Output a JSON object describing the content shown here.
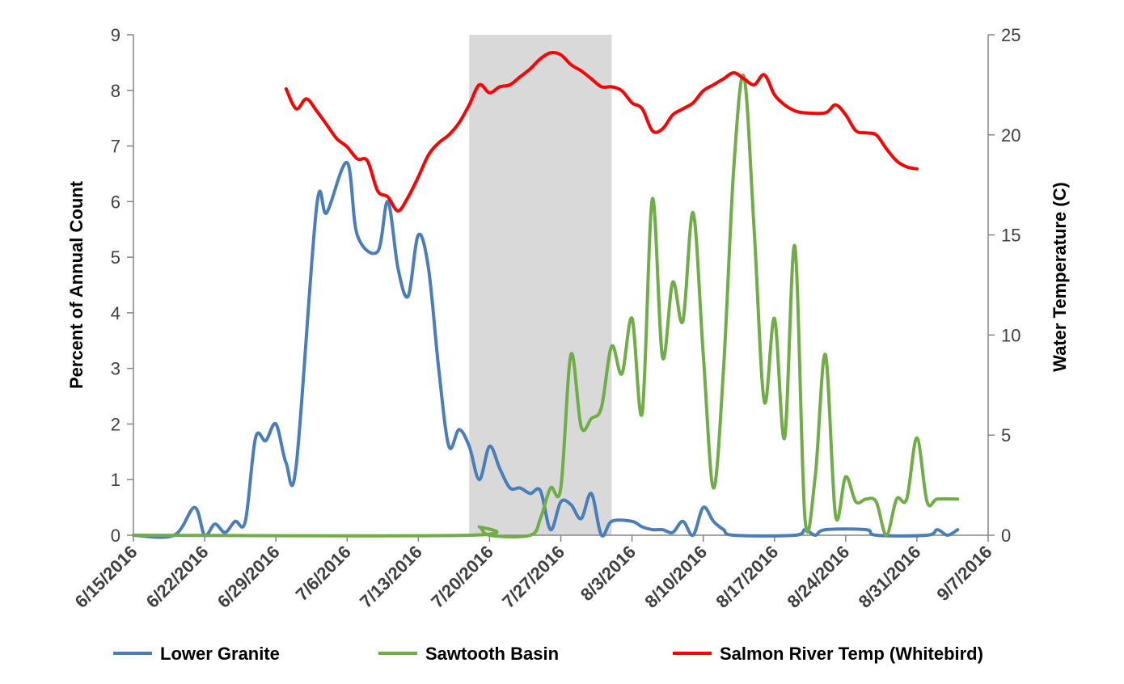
{
  "chart_data": {
    "type": "line",
    "x_axis": {
      "type": "date",
      "min": "2016-06-15",
      "max": "2016-09-07",
      "tick_labels": [
        "6/15/2016",
        "6/22/2016",
        "6/29/2016",
        "7/6/2016",
        "7/13/2016",
        "7/20/2016",
        "7/27/2016",
        "8/3/2016",
        "8/10/2016",
        "8/17/2016",
        "8/24/2016",
        "8/31/2016",
        "9/7/2016"
      ],
      "tick_dates": [
        "2016-06-15",
        "2016-06-22",
        "2016-06-29",
        "2016-07-06",
        "2016-07-13",
        "2016-07-20",
        "2016-07-27",
        "2016-08-03",
        "2016-08-10",
        "2016-08-17",
        "2016-08-24",
        "2016-08-31",
        "2016-09-07"
      ]
    },
    "y_axis_left": {
      "label": "Percent of  Annual Count",
      "min": 0,
      "max": 9,
      "ticks": [
        0,
        1,
        2,
        3,
        4,
        5,
        6,
        7,
        8,
        9
      ]
    },
    "y_axis_right": {
      "label": "Water Temperature (C)",
      "min": 0,
      "max": 25,
      "ticks": [
        0,
        5,
        10,
        15,
        20,
        25
      ]
    },
    "shaded_region": {
      "start": "2016-07-18",
      "end": "2016-08-01",
      "color": "#d9d9d9"
    },
    "grid": false,
    "legend_position": "bottom",
    "series": [
      {
        "name": "Lower Granite",
        "color": "#4a7ebb",
        "axis": "left",
        "points": [
          [
            "2016-06-15",
            0
          ],
          [
            "2016-06-19",
            0
          ],
          [
            "2016-06-21",
            0.5
          ],
          [
            "2016-06-22",
            0
          ],
          [
            "2016-06-23",
            0.2
          ],
          [
            "2016-06-24",
            0.05
          ],
          [
            "2016-06-25",
            0.25
          ],
          [
            "2016-06-26",
            0.25
          ],
          [
            "2016-06-27",
            1.75
          ],
          [
            "2016-06-28",
            1.7
          ],
          [
            "2016-06-29",
            2.0
          ],
          [
            "2016-06-30",
            1.3
          ],
          [
            "2016-07-01",
            1.25
          ],
          [
            "2016-07-03",
            5.9
          ],
          [
            "2016-07-04",
            5.8
          ],
          [
            "2016-07-06",
            6.7
          ],
          [
            "2016-07-07",
            5.4
          ],
          [
            "2016-07-09",
            5.1
          ],
          [
            "2016-07-10",
            6.0
          ],
          [
            "2016-07-11",
            4.8
          ],
          [
            "2016-07-12",
            4.3
          ],
          [
            "2016-07-13",
            5.4
          ],
          [
            "2016-07-14",
            4.8
          ],
          [
            "2016-07-15",
            3.0
          ],
          [
            "2016-07-16",
            1.6
          ],
          [
            "2016-07-17",
            1.9
          ],
          [
            "2016-07-18",
            1.6
          ],
          [
            "2016-07-19",
            1.0
          ],
          [
            "2016-07-20",
            1.6
          ],
          [
            "2016-07-21",
            1.2
          ],
          [
            "2016-07-22",
            0.85
          ],
          [
            "2016-07-23",
            0.85
          ],
          [
            "2016-07-24",
            0.75
          ],
          [
            "2016-07-25",
            0.8
          ],
          [
            "2016-07-26",
            0.1
          ],
          [
            "2016-07-27",
            0.6
          ],
          [
            "2016-07-28",
            0.55
          ],
          [
            "2016-07-29",
            0.3
          ],
          [
            "2016-07-30",
            0.75
          ],
          [
            "2016-07-31",
            0
          ],
          [
            "2016-08-01",
            0.25
          ],
          [
            "2016-08-03",
            0.25
          ],
          [
            "2016-08-04",
            0.15
          ],
          [
            "2016-08-05",
            0.1
          ],
          [
            "2016-08-06",
            0.1
          ],
          [
            "2016-08-07",
            0.05
          ],
          [
            "2016-08-08",
            0.25
          ],
          [
            "2016-08-09",
            0
          ],
          [
            "2016-08-10",
            0.5
          ],
          [
            "2016-08-11",
            0.25
          ],
          [
            "2016-08-12",
            0.1
          ],
          [
            "2016-08-13",
            0
          ],
          [
            "2016-08-19",
            0
          ],
          [
            "2016-08-20",
            0.1
          ],
          [
            "2016-08-21",
            0
          ],
          [
            "2016-08-22",
            0.1
          ],
          [
            "2016-08-26",
            0.1
          ],
          [
            "2016-08-27",
            0
          ],
          [
            "2016-09-01",
            0
          ],
          [
            "2016-09-02",
            0.1
          ],
          [
            "2016-09-03",
            0
          ],
          [
            "2016-09-04",
            0.1
          ]
        ]
      },
      {
        "name": "Sawtooth Basin",
        "color": "#70ad47",
        "axis": "left",
        "points": [
          [
            "2016-06-15",
            0
          ],
          [
            "2016-07-18",
            0
          ],
          [
            "2016-07-19",
            0.15
          ],
          [
            "2016-07-20",
            0
          ],
          [
            "2016-07-24",
            0
          ],
          [
            "2016-07-25",
            0.3
          ],
          [
            "2016-07-26",
            0.85
          ],
          [
            "2016-07-27",
            0.85
          ],
          [
            "2016-07-28",
            3.25
          ],
          [
            "2016-07-29",
            1.95
          ],
          [
            "2016-07-30",
            2.1
          ],
          [
            "2016-07-31",
            2.3
          ],
          [
            "2016-08-01",
            3.4
          ],
          [
            "2016-08-02",
            2.9
          ],
          [
            "2016-08-03",
            3.9
          ],
          [
            "2016-08-04",
            2.2
          ],
          [
            "2016-08-05",
            6.05
          ],
          [
            "2016-08-06",
            3.2
          ],
          [
            "2016-08-07",
            4.55
          ],
          [
            "2016-08-08",
            3.85
          ],
          [
            "2016-08-09",
            5.8
          ],
          [
            "2016-08-10",
            3.25
          ],
          [
            "2016-08-11",
            0.85
          ],
          [
            "2016-08-12",
            3.0
          ],
          [
            "2016-08-13",
            6.6
          ],
          [
            "2016-08-14",
            8.25
          ],
          [
            "2016-08-15",
            5.5
          ],
          [
            "2016-08-16",
            2.4
          ],
          [
            "2016-08-17",
            3.9
          ],
          [
            "2016-08-18",
            1.75
          ],
          [
            "2016-08-19",
            5.2
          ],
          [
            "2016-08-20",
            0.3
          ],
          [
            "2016-08-21",
            1.05
          ],
          [
            "2016-08-22",
            3.25
          ],
          [
            "2016-08-23",
            0.35
          ],
          [
            "2016-08-24",
            1.05
          ],
          [
            "2016-08-25",
            0.6
          ],
          [
            "2016-08-26",
            0.65
          ],
          [
            "2016-08-27",
            0.6
          ],
          [
            "2016-08-28",
            0
          ],
          [
            "2016-08-29",
            0.65
          ],
          [
            "2016-08-30",
            0.65
          ],
          [
            "2016-08-31",
            1.75
          ],
          [
            "2016-09-01",
            0.6
          ],
          [
            "2016-09-02",
            0.65
          ],
          [
            "2016-09-04",
            0.65
          ]
        ]
      },
      {
        "name": "Salmon River Temp (Whitebird)",
        "color": "#ff0000",
        "axis": "right",
        "points": [
          [
            "2016-06-30",
            22.3
          ],
          [
            "2016-07-01",
            21.3
          ],
          [
            "2016-07-02",
            21.8
          ],
          [
            "2016-07-03",
            21.2
          ],
          [
            "2016-07-04",
            20.5
          ],
          [
            "2016-07-05",
            19.8
          ],
          [
            "2016-07-06",
            19.4
          ],
          [
            "2016-07-07",
            18.8
          ],
          [
            "2016-07-08",
            18.7
          ],
          [
            "2016-07-09",
            17.2
          ],
          [
            "2016-07-10",
            16.9
          ],
          [
            "2016-07-11",
            16.2
          ],
          [
            "2016-07-12",
            16.9
          ],
          [
            "2016-07-13",
            17.9
          ],
          [
            "2016-07-14",
            19.0
          ],
          [
            "2016-07-15",
            19.6
          ],
          [
            "2016-07-16",
            20.0
          ],
          [
            "2016-07-17",
            20.6
          ],
          [
            "2016-07-18",
            21.5
          ],
          [
            "2016-07-19",
            22.5
          ],
          [
            "2016-07-20",
            22.1
          ],
          [
            "2016-07-21",
            22.4
          ],
          [
            "2016-07-22",
            22.5
          ],
          [
            "2016-07-23",
            22.9
          ],
          [
            "2016-07-24",
            23.3
          ],
          [
            "2016-07-25",
            23.8
          ],
          [
            "2016-07-26",
            24.1
          ],
          [
            "2016-07-27",
            24.0
          ],
          [
            "2016-07-28",
            23.5
          ],
          [
            "2016-07-29",
            23.2
          ],
          [
            "2016-07-30",
            22.8
          ],
          [
            "2016-07-31",
            22.4
          ],
          [
            "2016-08-01",
            22.4
          ],
          [
            "2016-08-02",
            22.2
          ],
          [
            "2016-08-03",
            21.6
          ],
          [
            "2016-08-04",
            21.3
          ],
          [
            "2016-08-05",
            20.2
          ],
          [
            "2016-08-06",
            20.3
          ],
          [
            "2016-08-07",
            21.0
          ],
          [
            "2016-08-08",
            21.3
          ],
          [
            "2016-08-09",
            21.6
          ],
          [
            "2016-08-10",
            22.2
          ],
          [
            "2016-08-11",
            22.5
          ],
          [
            "2016-08-12",
            22.8
          ],
          [
            "2016-08-13",
            23.1
          ],
          [
            "2016-08-14",
            22.8
          ],
          [
            "2016-08-15",
            22.5
          ],
          [
            "2016-08-16",
            23.0
          ],
          [
            "2016-08-17",
            22.0
          ],
          [
            "2016-08-18",
            21.5
          ],
          [
            "2016-08-19",
            21.2
          ],
          [
            "2016-08-20",
            21.1
          ],
          [
            "2016-08-22",
            21.1
          ],
          [
            "2016-08-23",
            21.5
          ],
          [
            "2016-08-24",
            21.0
          ],
          [
            "2016-08-25",
            20.2
          ],
          [
            "2016-08-26",
            20.1
          ],
          [
            "2016-08-27",
            20.0
          ],
          [
            "2016-08-28",
            19.3
          ],
          [
            "2016-08-29",
            18.7
          ],
          [
            "2016-08-30",
            18.4
          ],
          [
            "2016-08-31",
            18.3
          ]
        ]
      }
    ]
  }
}
